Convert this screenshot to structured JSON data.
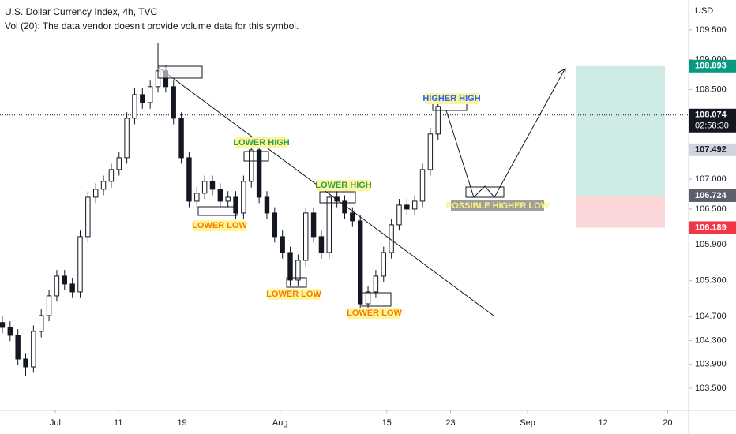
{
  "chart_data": {
    "type": "candlestick",
    "title": "U.S. Dollar Currency Index, 4h, TVC",
    "subtitle": "Vol (20): The data vendor doesn't provide volume data for this symbol.",
    "currency": "USD",
    "color": "#131722",
    "xlim": [
      -0.3,
      88.2
    ],
    "xticks": [
      {
        "value": 6.8,
        "label": "Jul"
      },
      {
        "value": 14.9,
        "label": "11"
      },
      {
        "value": 23.1,
        "label": "19"
      },
      {
        "value": 35.7,
        "label": "Aug"
      },
      {
        "value": 49.4,
        "label": "15"
      },
      {
        "value": 57.6,
        "label": "23"
      },
      {
        "value": 67.5,
        "label": "Sep"
      },
      {
        "value": 77.2,
        "label": "12"
      },
      {
        "value": 85.5,
        "label": "20"
      }
    ],
    "ylim": [
      103.13,
      110.0
    ],
    "yticks": [
      {
        "value": 109.5,
        "label": "109.500"
      },
      {
        "value": 109.0,
        "label": "109.000"
      },
      {
        "value": 108.5,
        "label": "108.500"
      },
      {
        "value": 107.0,
        "label": "107.000"
      },
      {
        "value": 106.5,
        "label": "106.500"
      },
      {
        "value": 105.9,
        "label": "105.900"
      },
      {
        "value": 105.3,
        "label": "105.300"
      },
      {
        "value": 104.7,
        "label": "104.700"
      },
      {
        "value": 104.3,
        "label": "104.300"
      },
      {
        "value": 103.9,
        "label": "103.900"
      },
      {
        "value": 103.5,
        "label": "103.500"
      }
    ],
    "open": [
      104.6,
      104.518,
      104.386,
      103.989,
      103.857,
      104.452,
      104.716,
      105.047,
      105.377,
      105.245,
      105.113,
      106.038,
      106.698,
      106.831,
      106.963,
      107.161,
      107.359,
      108.02,
      108.416,
      108.284,
      108.549,
      108.813,
      108.549,
      108.02,
      107.359,
      106.632,
      106.765,
      106.963,
      106.831,
      106.632,
      106.698,
      106.434,
      106.963,
      107.491,
      106.698,
      106.434,
      106.038,
      105.773,
      105.311,
      105.641,
      106.434,
      106.038,
      105.773,
      106.698,
      106.632,
      106.434,
      106.302,
      104.914,
      105.113,
      105.377,
      105.773,
      106.236,
      106.566,
      106.5,
      106.632,
      107.161,
      107.756
    ],
    "high": [
      104.7,
      104.62,
      104.49,
      104.09,
      104.55,
      104.82,
      105.15,
      105.48,
      105.48,
      105.35,
      106.14,
      106.8,
      106.93,
      107.06,
      107.26,
      107.46,
      108.12,
      108.52,
      108.52,
      108.65,
      109.28,
      108.91,
      108.65,
      108.12,
      107.46,
      106.87,
      107.06,
      107.06,
      106.93,
      106.8,
      106.8,
      107.06,
      107.62,
      107.59,
      106.8,
      106.53,
      106.14,
      105.87,
      105.74,
      106.53,
      106.53,
      106.14,
      106.8,
      106.8,
      106.73,
      106.53,
      106.4,
      105.21,
      105.48,
      105.87,
      106.34,
      106.67,
      106.67,
      106.73,
      107.26,
      107.86,
      108.32
    ],
    "low": [
      104.42,
      104.29,
      103.89,
      103.7,
      103.76,
      104.35,
      104.62,
      104.95,
      105.15,
      105.01,
      105.01,
      105.94,
      106.6,
      106.73,
      106.86,
      107.06,
      107.26,
      107.92,
      108.18,
      108.18,
      108.45,
      108.45,
      107.92,
      107.26,
      106.53,
      106.53,
      106.67,
      106.73,
      106.53,
      106.53,
      106.33,
      106.33,
      106.86,
      106.6,
      106.33,
      105.94,
      105.67,
      105.21,
      105.21,
      105.54,
      105.94,
      105.67,
      105.67,
      106.53,
      106.33,
      106.2,
      104.78,
      104.81,
      105.01,
      105.28,
      105.67,
      106.14,
      106.4,
      106.4,
      106.53,
      107.06,
      107.66
    ],
    "close": [
      104.518,
      104.386,
      103.989,
      103.857,
      104.452,
      104.716,
      105.047,
      105.377,
      105.245,
      105.113,
      106.038,
      106.698,
      106.831,
      106.963,
      107.161,
      107.359,
      108.02,
      108.416,
      108.284,
      108.549,
      108.813,
      108.549,
      108.02,
      107.359,
      106.632,
      106.765,
      106.963,
      106.831,
      106.632,
      106.698,
      106.434,
      106.963,
      107.491,
      106.698,
      106.434,
      106.038,
      105.773,
      105.311,
      105.641,
      106.434,
      106.038,
      105.773,
      106.698,
      106.632,
      106.434,
      106.302,
      104.914,
      105.113,
      105.377,
      105.773,
      106.236,
      106.566,
      106.5,
      106.632,
      107.161,
      107.756,
      108.218
    ],
    "price_labels": [
      {
        "value": 108.893,
        "color": "#089981"
      },
      {
        "value": 108.074,
        "color": "#131722",
        "countdown": "02:58:30"
      },
      {
        "value": 107.492,
        "color": "#d1d4dc"
      },
      {
        "value": 106.724,
        "color": "#5d606b"
      },
      {
        "value": 106.189,
        "color": "#f23645"
      }
    ],
    "annotations": [
      "HIGHER HIGH",
      "LOWER HIGH",
      "LOWER HIGH",
      "LOWER LOW",
      "LOWER LOW",
      "LOWER LOW",
      "POSSIBLE HIGHER LOW"
    ]
  }
}
